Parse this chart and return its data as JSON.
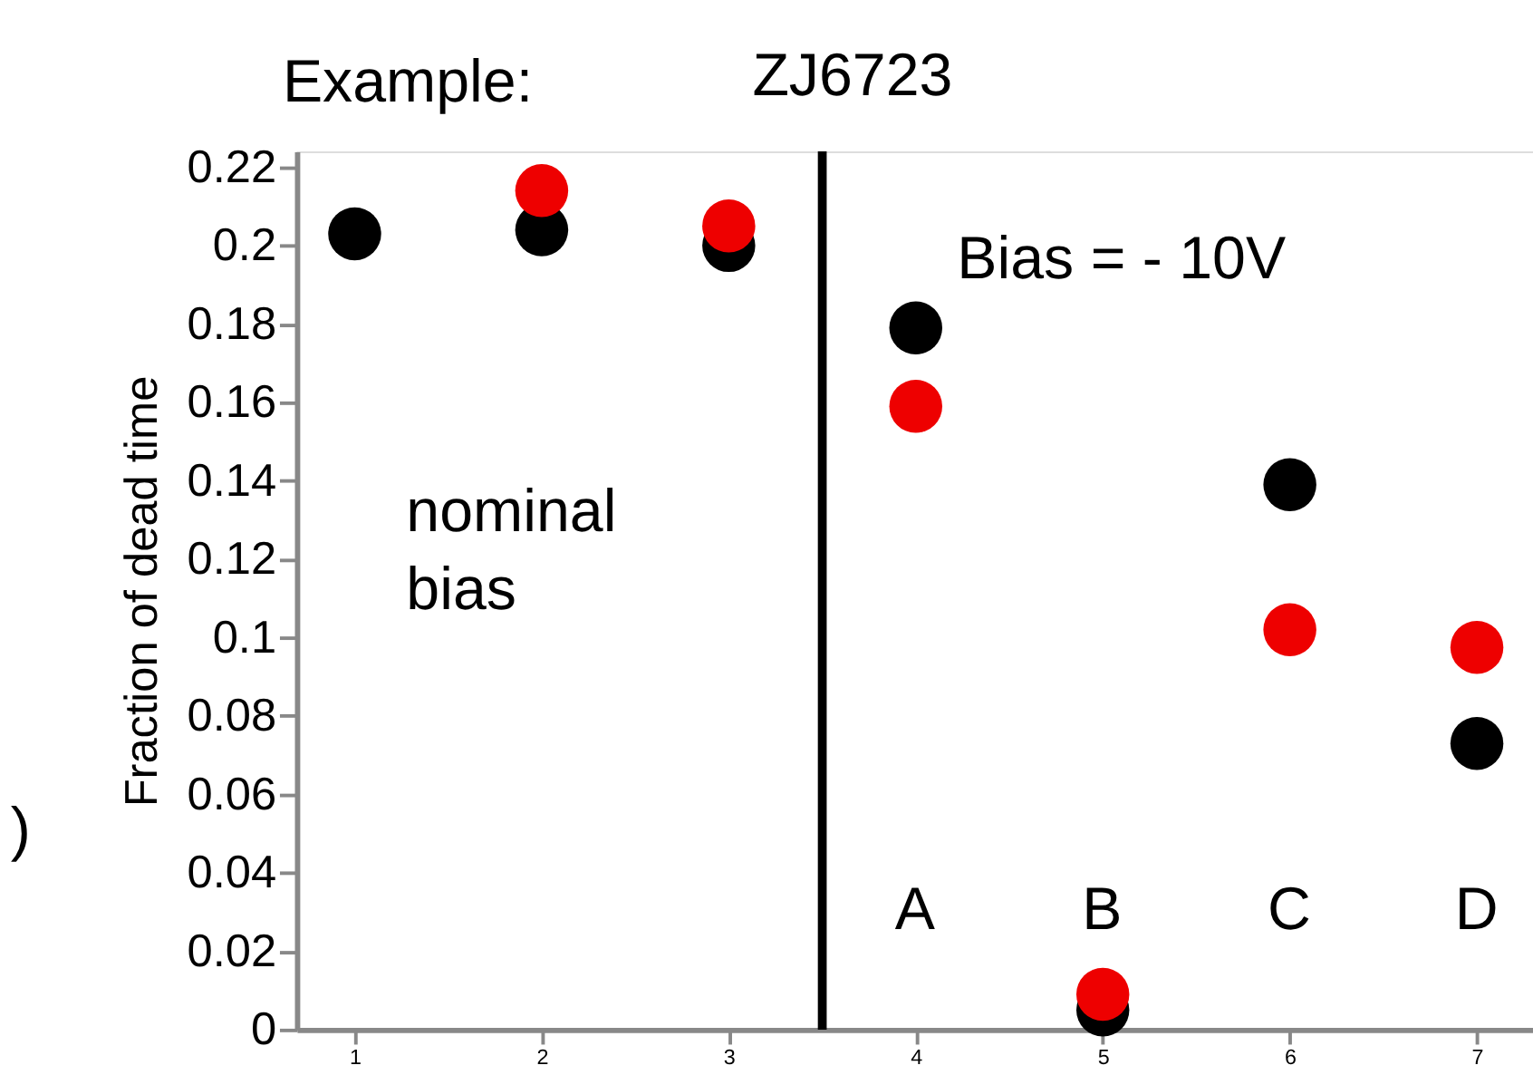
{
  "chart_data": {
    "type": "scatter",
    "title": "ZJ6723",
    "ylabel": "Fraction of dead time",
    "x": [
      1,
      2,
      3,
      4,
      5,
      6,
      7
    ],
    "series": [
      {
        "color": "#000000",
        "values": [
          0.203,
          0.204,
          0.2,
          0.179,
          0.005,
          0.139,
          0.073
        ]
      },
      {
        "color": "#ee0000",
        "values": [
          null,
          0.214,
          0.205,
          0.159,
          0.009,
          0.102,
          0.0975
        ]
      }
    ],
    "xlim": [
      0.69,
      7.3
    ],
    "ylim": [
      0,
      0.224
    ],
    "xticks": [
      1,
      2,
      3,
      4,
      5,
      6,
      7
    ],
    "yticks": [
      0,
      0.02,
      0.04,
      0.06,
      0.08,
      0.1,
      0.12,
      0.14,
      0.16,
      0.18,
      0.2,
      0.22
    ],
    "ref_lines": [
      {
        "axis": "x",
        "value": 3.5,
        "color": "#000000"
      }
    ],
    "annotations": [
      "Example:",
      "Bias = - 10V",
      "nominal\nbias",
      ")",
      "A",
      "B",
      "C",
      "D"
    ],
    "marker": "circle",
    "grid": false
  }
}
